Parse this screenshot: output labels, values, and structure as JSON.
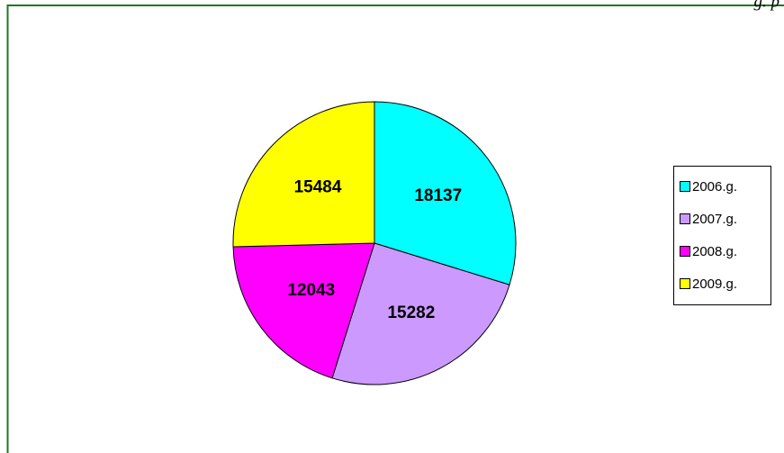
{
  "chart_data": {
    "type": "pie",
    "annotation": "g. p",
    "categories": [
      "2006.g.",
      "2007.g.",
      "2008.g.",
      "2009.g."
    ],
    "values": [
      18137,
      15282,
      12043,
      15484
    ],
    "colors": [
      "#00ffff",
      "#cc99ff",
      "#ff00ff",
      "#ffff00"
    ],
    "legend": "right"
  }
}
